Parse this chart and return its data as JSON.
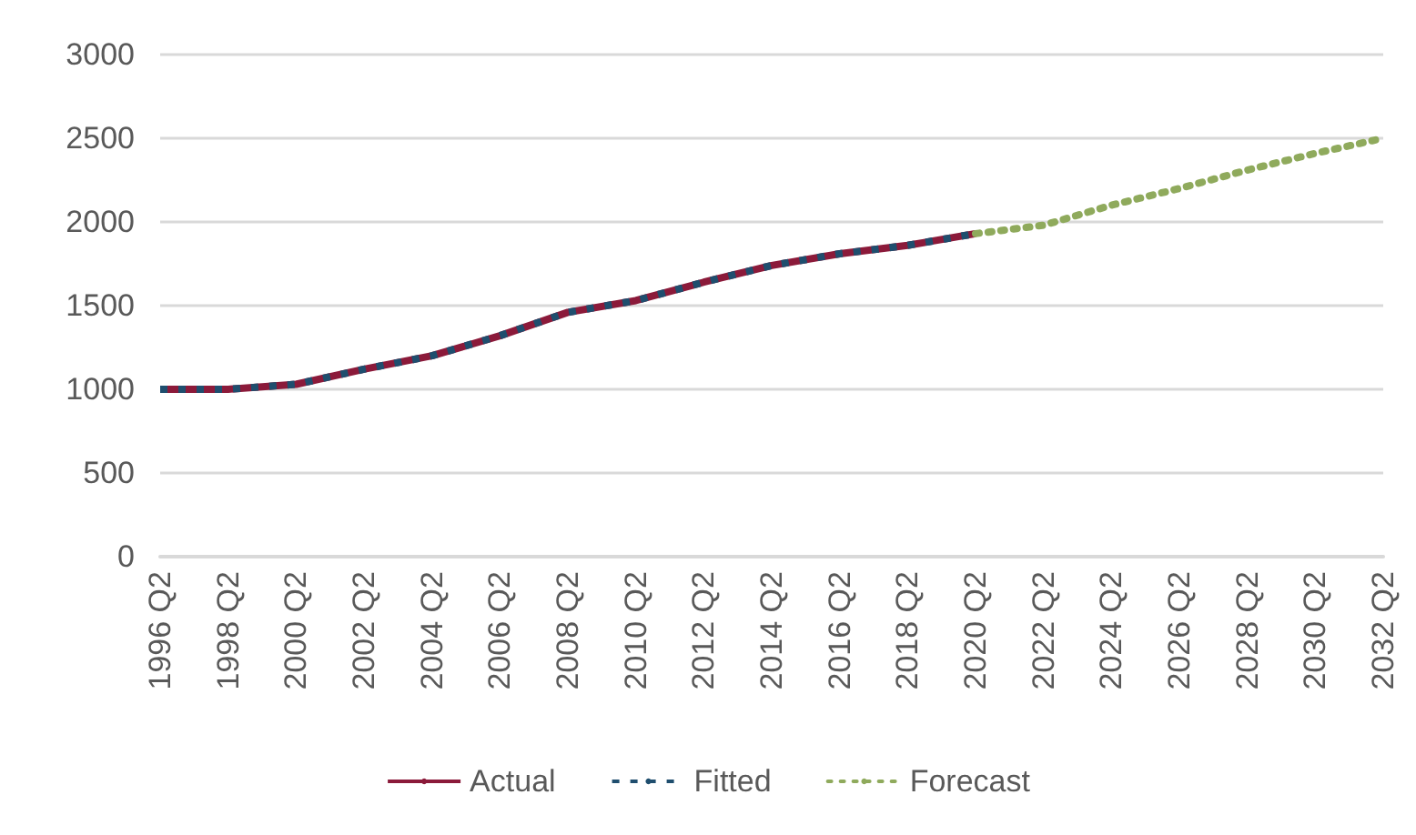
{
  "chart_data": {
    "type": "line",
    "categories": [
      "1996 Q2",
      "1998 Q2",
      "2000 Q2",
      "2002 Q2",
      "2004 Q2",
      "2006 Q2",
      "2008 Q2",
      "2010 Q2",
      "2012 Q2",
      "2014 Q2",
      "2016 Q2",
      "2018 Q2",
      "2020 Q2",
      "2022 Q2",
      "2024 Q2",
      "2026 Q2",
      "2028 Q2",
      "2030 Q2",
      "2032 Q2"
    ],
    "series": [
      {
        "name": "Actual",
        "color": "#8b1a3a",
        "line_style": "solid",
        "values": [
          1000,
          1000,
          1030,
          1120,
          1200,
          1320,
          1460,
          1530,
          1640,
          1740,
          1810,
          1860,
          1930,
          null,
          null,
          null,
          null,
          null,
          null
        ]
      },
      {
        "name": "Fitted",
        "color": "#1f4e6e",
        "line_style": "dashed",
        "values": [
          1000,
          1000,
          1030,
          1120,
          1200,
          1320,
          1460,
          1530,
          1640,
          1740,
          1810,
          1860,
          1930,
          null,
          null,
          null,
          null,
          null,
          null
        ]
      },
      {
        "name": "Forecast",
        "color": "#8faa5c",
        "line_style": "dotted",
        "values": [
          null,
          null,
          null,
          null,
          null,
          null,
          null,
          null,
          null,
          null,
          null,
          null,
          1930,
          1980,
          2100,
          2200,
          2310,
          2410,
          2500
        ]
      }
    ],
    "ylim": [
      0,
      3000
    ],
    "yticks": [
      0,
      500,
      1000,
      1500,
      2000,
      2500,
      3000
    ],
    "grid": "y",
    "legend": "bottom",
    "marker": "none"
  }
}
